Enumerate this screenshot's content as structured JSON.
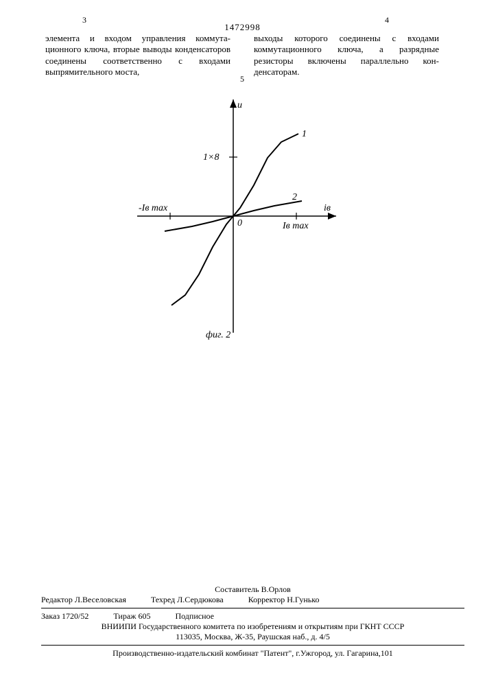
{
  "header": {
    "page_left": "3",
    "page_right": "4",
    "doc_id": "1472998",
    "margin_num": "5"
  },
  "text": {
    "left_col": "элемента и входом управления коммута­ционного ключа, вторые выводы кон­денсаторов соединены соответственно с входами выпрямительного моста,",
    "right_col": "выходы которого соединены с входами коммутационного ключа, а разрядные резисторы включены параллельно кон­денсаторам."
  },
  "figure": {
    "type": "line",
    "caption": "фиг. 2",
    "y_axis_label": "u",
    "x_axis_label": "iв",
    "tick_y_pos": "1×8",
    "tick_x_pos": "Iв max",
    "tick_x_neg": "-Iв max",
    "origin_label": "0",
    "curve1_label": "1",
    "curve2_label": "2",
    "colors": {
      "stroke": "#000000",
      "bg": "#ffffff"
    },
    "line_width_axis": 1.5,
    "line_width_curve": 2,
    "curves": {
      "curve1": [
        [
          -90,
          130
        ],
        [
          -70,
          115
        ],
        [
          -50,
          85
        ],
        [
          -30,
          45
        ],
        [
          -10,
          12
        ],
        [
          0,
          0
        ],
        [
          10,
          -12
        ],
        [
          30,
          -45
        ],
        [
          50,
          -85
        ],
        [
          70,
          -108
        ],
        [
          95,
          -120
        ]
      ],
      "curve2": [
        [
          -100,
          22
        ],
        [
          -60,
          15
        ],
        [
          -30,
          8
        ],
        [
          0,
          0
        ],
        [
          30,
          -8
        ],
        [
          60,
          -15
        ],
        [
          100,
          -22
        ]
      ]
    }
  },
  "footer": {
    "compiler": "Составитель В.Орлов",
    "editor": "Редактор Л.Веселовская",
    "techred": "Техред Л.Сердюкова",
    "corrector": "Корректор Н.Гунько",
    "order": "Заказ 1720/52",
    "tirage": "Тираж 605",
    "subscription": "Подписное",
    "org": "ВНИИПИ Государственного комитета по изобретениям и открытиям при ГКНТ СССР",
    "address": "113035, Москва, Ж-35, Раушская наб., д. 4/5",
    "production": "Производственно-издательский комбинат \"Патент\", г.Ужгород, ул. Гагарина,101"
  }
}
